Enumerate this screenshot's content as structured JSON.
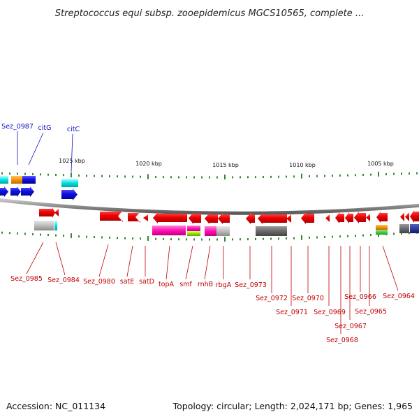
{
  "title": "Streptococcus equi subsp. zooepidemicus MGCS10565, complete ...",
  "accession": "Accession: NC_011134",
  "topology": "Topology: circular; Length: 2,024,171 bp; Genes: 1,965",
  "colors": {
    "forward_gene": "#1a1ae0",
    "reverse_gene": "#e80000",
    "forward_label": "#1010c0",
    "reverse_label": "#c00000",
    "backbone": "#8a8a8a",
    "tick": "#2e8b2e"
  },
  "scale_labels": [
    "1025 kbp",
    "1020 kbp",
    "1015 kbp",
    "1010 kbp",
    "1005 kbp"
  ],
  "top_labels": [
    "Sez_0987",
    "citG",
    "citC"
  ],
  "bottom_labels": [
    "Sez_0985",
    "Sez_0984",
    "Sez_0980",
    "satE",
    "satD",
    "topA",
    "smf",
    "rnhB",
    "rbgA",
    "Sez_0973",
    "Sez_0972",
    "Sez_0971",
    "Sez_0970",
    "Sez_0969",
    "Sez_0968",
    "Sez_0967",
    "Sez_0966",
    "Sez_0965",
    "Sez_0964"
  ],
  "icons": [
    "forward-gene-arrow-icon",
    "reverse-gene-arrow-icon"
  ]
}
